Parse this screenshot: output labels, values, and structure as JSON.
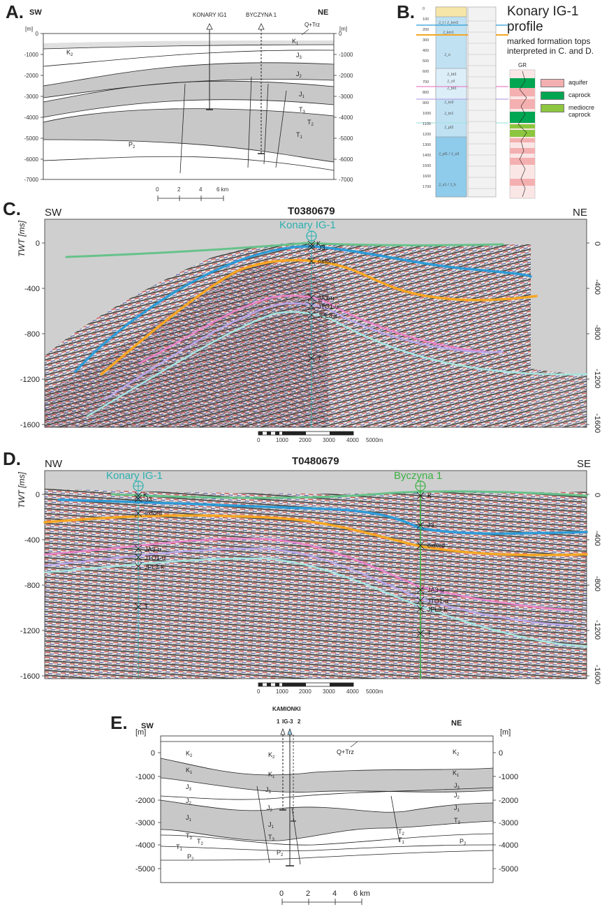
{
  "panelA": {
    "label": "A.",
    "left_dir": "SW",
    "right_dir": "NE",
    "unit": "[m]",
    "depth_ticks": [
      "0",
      "-1000",
      "-2000",
      "-3000",
      "-4000",
      "-5000",
      "-6000",
      "-7000"
    ],
    "wells": [
      "KONARY IG1",
      "BYCZYNA 1"
    ],
    "surface_label": "Q+Trz",
    "formations": {
      "k2": "K",
      "k2_sub": "2",
      "k1": "K",
      "k1_sub": "1",
      "j3": "J",
      "j3_sub": "3",
      "j2": "J",
      "j2_sub": "2",
      "j1": "J",
      "j1_sub": "1",
      "t3": "T",
      "t3_sub": "3",
      "t2": "T",
      "t2_sub": "2",
      "t1": "T",
      "t1_sub": "1",
      "p2": "P",
      "p2_sub": "2"
    },
    "scale_ticks": [
      "0",
      "2",
      "4",
      "6 km"
    ]
  },
  "panelB": {
    "label": "B.",
    "title_lines": [
      "Konary IG-1",
      "profile"
    ],
    "subtitle_lines": [
      "marked formation tops",
      "interpreted in C. and D."
    ],
    "depth_ticks": [
      "0",
      "100",
      "200",
      "300",
      "400",
      "500",
      "600",
      "700",
      "800",
      "900",
      "1000",
      "1100",
      "1200",
      "1300",
      "1400",
      "1500",
      "1600",
      "1700"
    ],
    "formations": [
      "J_t / J_km3",
      "J_km1",
      "J_o",
      "J_bt3",
      "J_cll",
      "J_bt3",
      "J_to3",
      "J_to1",
      "J_pl3",
      "J_pl1 / J_s3",
      "J_s1 / J_h"
    ],
    "gr_label": "GR",
    "legend": [
      {
        "label_lines": [
          "aquifer"
        ],
        "color": "#f4b0b0"
      },
      {
        "label_lines": [
          "caprock"
        ],
        "color": "#00a651"
      },
      {
        "label_lines": [
          "mediocre",
          "caprock"
        ],
        "color": "#8dc63f"
      }
    ]
  },
  "panelC": {
    "label": "C.",
    "left_dir": "SW",
    "right_dir": "NE",
    "title": "T0380679",
    "ylabel": "TWT [ms]",
    "well": "Konary IG-1",
    "y_ticks": [
      "0",
      "-400",
      "-800",
      "-1200",
      "-1600"
    ],
    "horizon_labels": [
      "K",
      "J3",
      "oxford",
      "JA3-u",
      "JTO1-u",
      "JPL3-k",
      "T"
    ],
    "scale_ticks": [
      "0",
      "1000",
      "2000",
      "3000",
      "4000",
      "5000m"
    ]
  },
  "panelD": {
    "label": "D.",
    "left_dir": "NW",
    "right_dir": "SE",
    "title": "T0480679",
    "ylabel": "TWT [ms]",
    "wells": [
      "Konary IG-1",
      "Byczyna 1"
    ],
    "y_ticks": [
      "0",
      "-400",
      "-800",
      "-1200",
      "-1600"
    ],
    "horizon_labels_w1": [
      "K",
      "J3",
      "oxford",
      "JA3-u",
      "JTO1-u",
      "JPL3-k",
      "T"
    ],
    "horizon_labels_w2": [
      "K",
      "J3",
      "oxford",
      "JA3-u",
      "JTO1-u",
      "JPL3-k",
      "T"
    ],
    "scale_ticks": [
      "0",
      "1000",
      "2000",
      "3000",
      "4000",
      "5000m"
    ]
  },
  "panelE": {
    "label": "E.",
    "left_dir": "SW",
    "right_dir": "NE",
    "unit": "[m]",
    "depth_ticks": [
      "0",
      "-1000",
      "-2000",
      "-3000",
      "-4000",
      "-5000"
    ],
    "well_title_lines": [
      "KAMIONKI",
      "IG-3"
    ],
    "well_nums": [
      "1",
      "2"
    ],
    "surface_label": "Q+Trz",
    "formations": {
      "k2": "K",
      "k2_sub": "2",
      "k1": "K",
      "k1_sub": "1",
      "j3": "J",
      "j3_sub": "3",
      "j2": "J",
      "j2_sub": "2",
      "j1": "J",
      "j1_sub": "1",
      "t3": "T",
      "t3_sub": "3",
      "t2": "T",
      "t2_sub": "2",
      "t1": "T",
      "t1_sub": "1",
      "p2": "P",
      "p2_sub": "2"
    },
    "scale_ticks": [
      "0",
      "2",
      "4",
      "6 km"
    ]
  },
  "colors": {
    "gray_layer": "#c8c8c8",
    "hz_K": "#66c28a",
    "hz_J3": "#2e9bd6",
    "hz_oxford": "#f5a623",
    "hz_JA3": "#e884c8",
    "hz_JTO1": "#b9a6e6",
    "hz_JPL3": "#a6e3df",
    "well_C": "#2ab0b0",
    "well_D2": "#3cb043",
    "bore_blue": "#9fd3ee"
  }
}
